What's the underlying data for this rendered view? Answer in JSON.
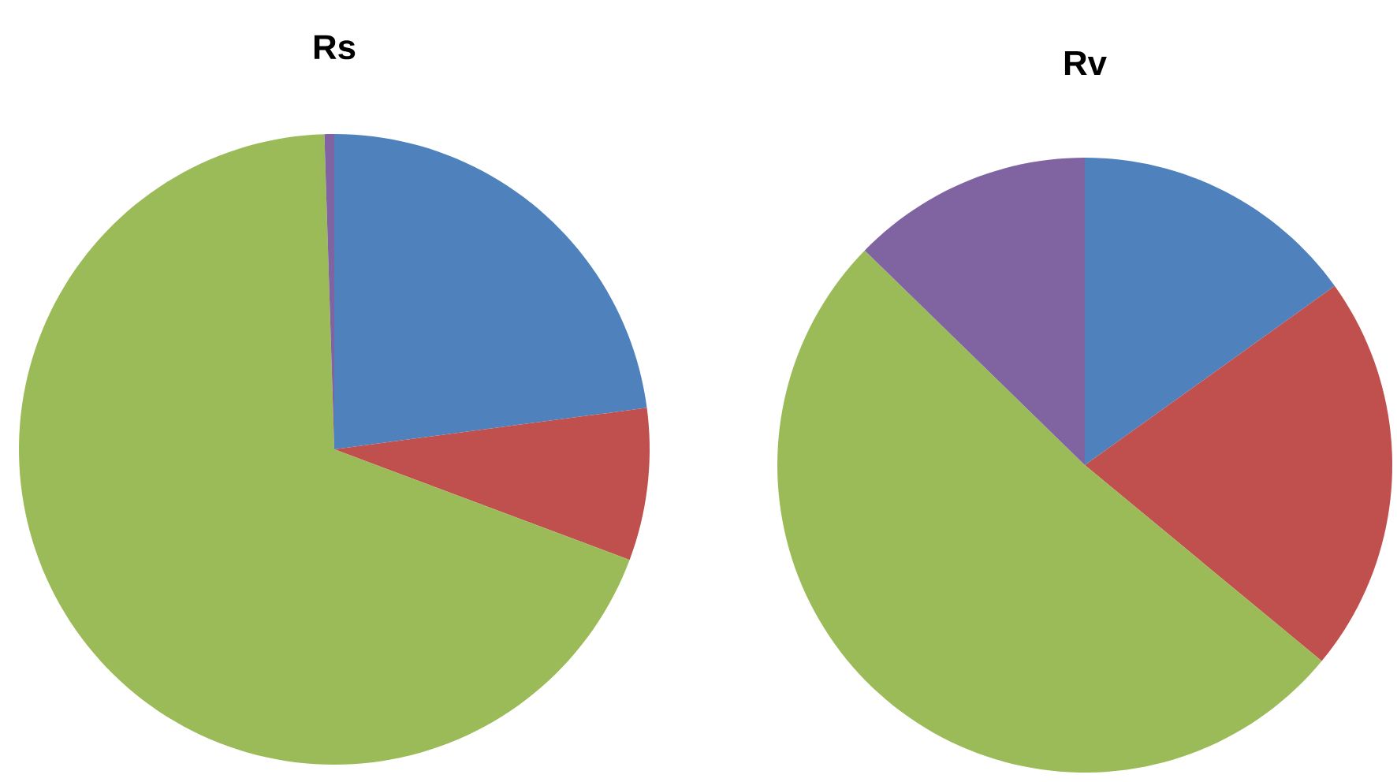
{
  "chart_data": [
    {
      "type": "pie",
      "title": "Rs",
      "categories": [
        null,
        null,
        null,
        null
      ],
      "values": [
        22.9,
        7.8,
        68.8,
        0.5
      ],
      "colors": [
        "#4f81bd",
        "#c0504d",
        "#9bbb59",
        "#8064a2"
      ]
    },
    {
      "type": "pie",
      "title": "Rv",
      "categories": [
        null,
        null,
        null,
        null
      ],
      "values": [
        15.1,
        20.9,
        51.3,
        12.7
      ],
      "colors": [
        "#4f81bd",
        "#c0504d",
        "#9bbb59",
        "#8064a2"
      ]
    }
  ]
}
